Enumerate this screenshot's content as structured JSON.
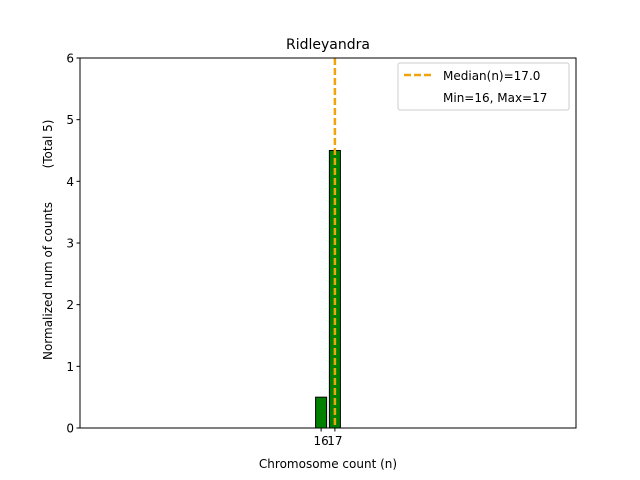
{
  "chart_data": {
    "type": "bar",
    "title": "Ridleyandra",
    "xlabel": "Chromosome count (n)",
    "ylabel": "Normalized num of counts",
    "ylabel_note": "(Total 5)",
    "x": [
      16,
      17
    ],
    "x_tick_labels": [
      "16",
      "17"
    ],
    "values": [
      0.5,
      4.5
    ],
    "ylim": [
      0,
      6
    ],
    "y_ticks": [
      0,
      1,
      2,
      3,
      4,
      5,
      6
    ],
    "xlim": [
      -1.5,
      34.5
    ],
    "bar_color": "#008000",
    "bar_edge_color": "#000000",
    "median": 17.0,
    "median_color": "#f0a30a",
    "legend": {
      "location": "top-right",
      "entries": [
        "Median(n)=17.0",
        "Min=16, Max=17"
      ]
    },
    "grid": false
  }
}
